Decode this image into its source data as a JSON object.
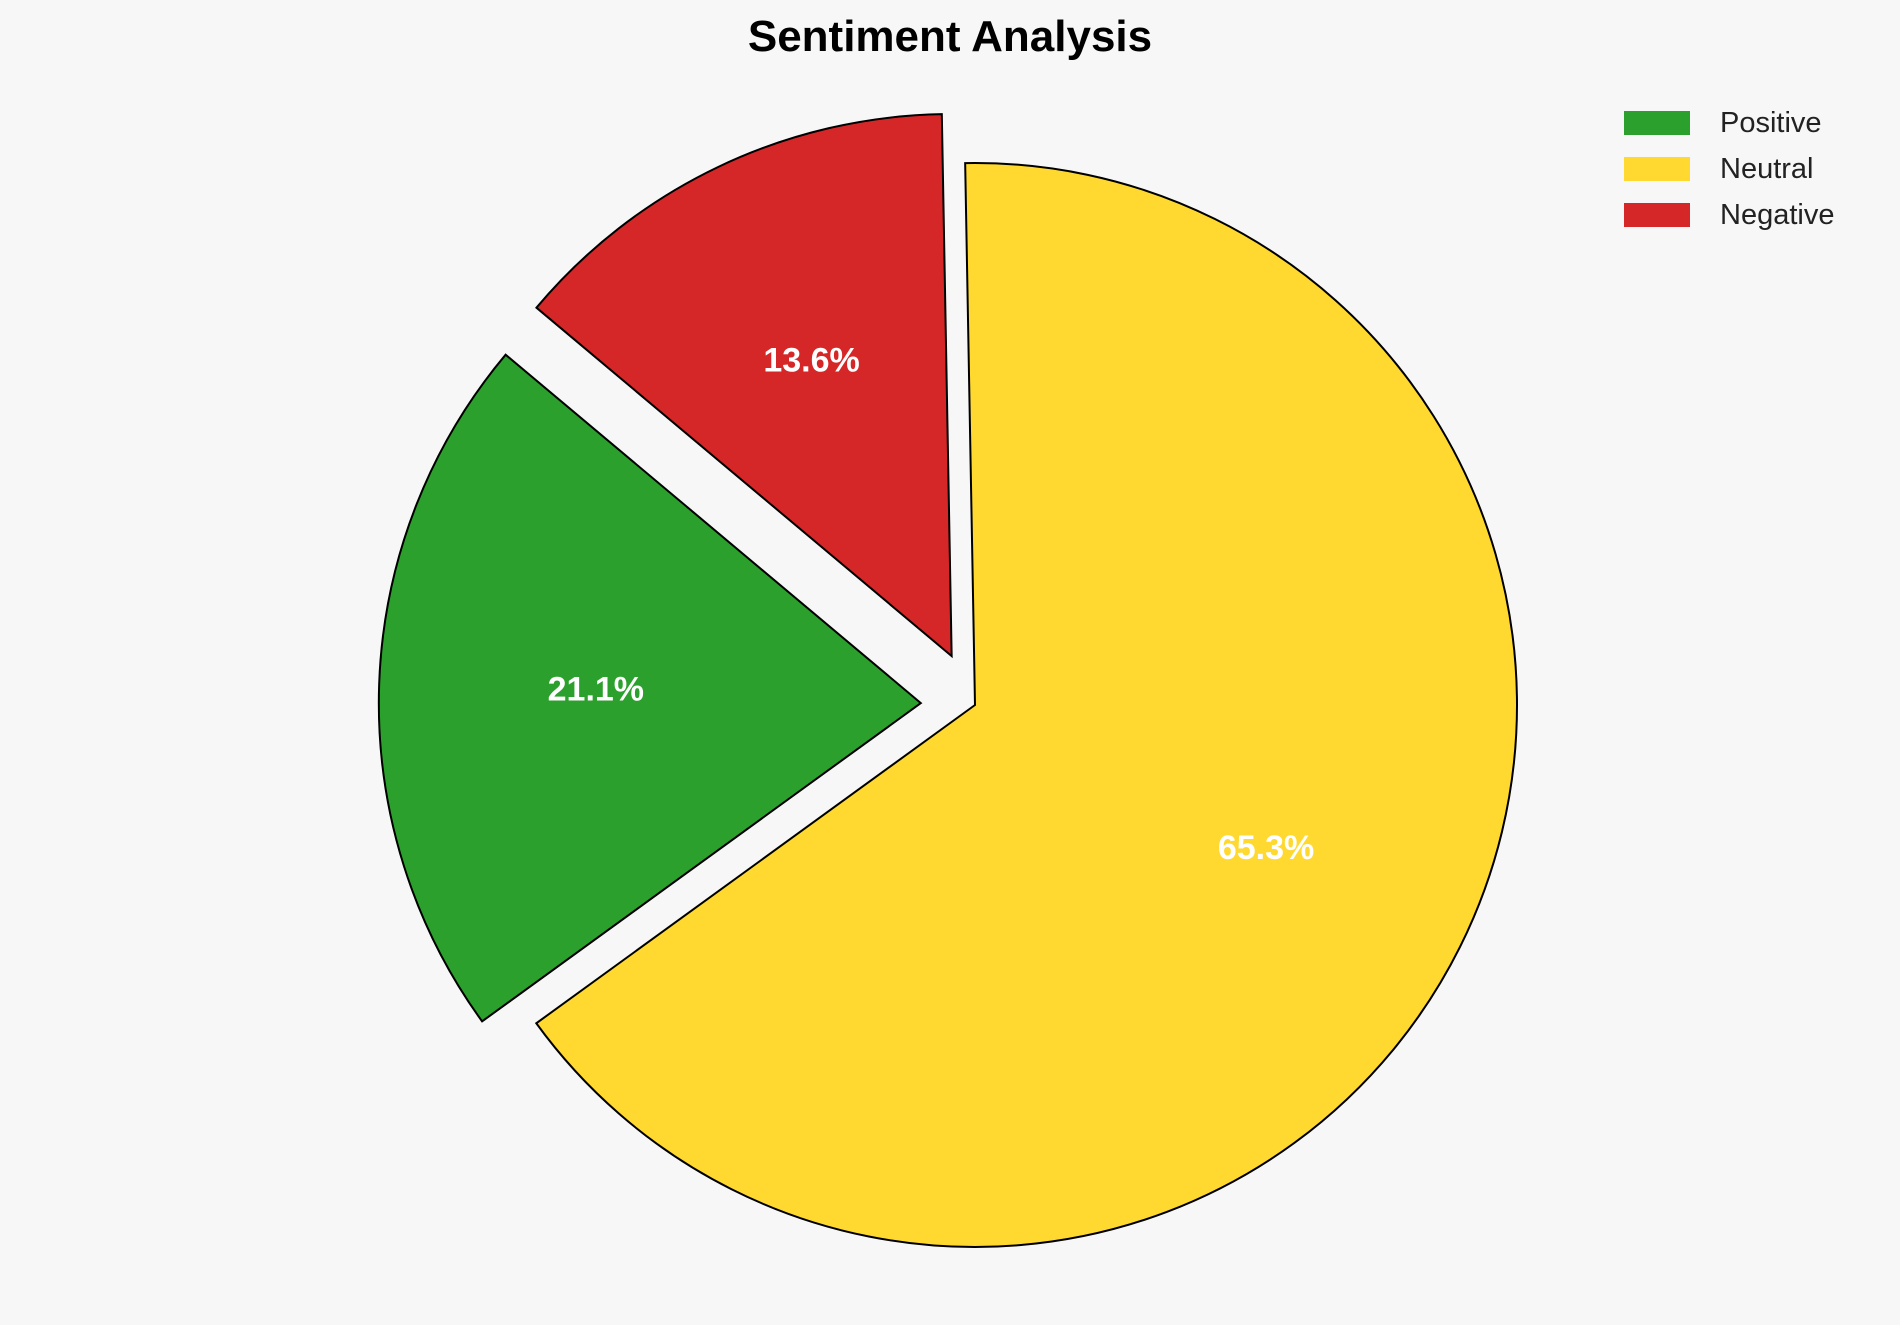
{
  "chart_data": {
    "type": "pie",
    "title": "Sentiment Analysis",
    "categories": [
      "Positive",
      "Neutral",
      "Negative"
    ],
    "values": [
      21.1,
      65.3,
      13.6
    ],
    "labels": [
      "21.1%",
      "65.3%",
      "13.6%"
    ],
    "colors": [
      "#2ca02c",
      "#ffd92f",
      "#d62728"
    ],
    "exploded": [
      true,
      false,
      true
    ],
    "start_angle": 140,
    "direction": "counterclockwise",
    "legend_position": "top-right"
  }
}
